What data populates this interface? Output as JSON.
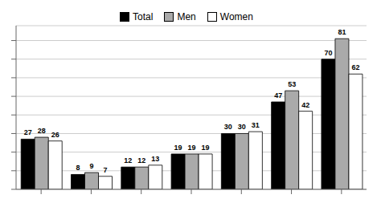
{
  "chart_data": {
    "type": "bar",
    "categories": [
      null,
      null,
      null,
      null,
      null,
      null,
      null
    ],
    "series": [
      {
        "name": "Total",
        "color": "#000000",
        "values": [
          27,
          8,
          12,
          19,
          30,
          47,
          70
        ]
      },
      {
        "name": "Men",
        "color": "#aaaaaa",
        "values": [
          28,
          9,
          12,
          19,
          30,
          53,
          81
        ]
      },
      {
        "name": "Women",
        "color": "#ffffff",
        "values": [
          26,
          7,
          13,
          19,
          31,
          42,
          62
        ]
      }
    ],
    "ylim": [
      0,
      88
    ],
    "yticks": [
      0,
      10,
      20,
      30,
      40,
      50,
      60,
      70,
      80
    ],
    "grid": true,
    "legend": "top",
    "data_labels": true,
    "tick_labels": false
  }
}
